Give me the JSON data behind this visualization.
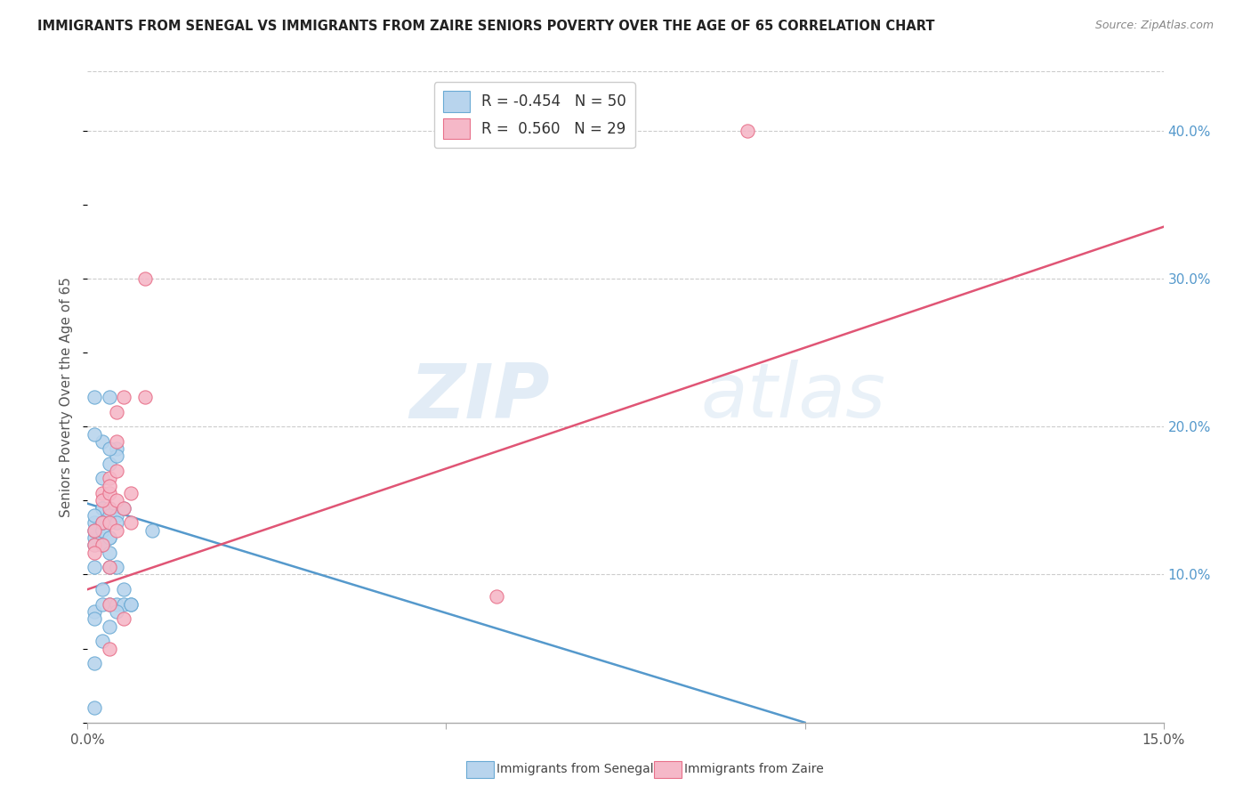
{
  "title": "IMMIGRANTS FROM SENEGAL VS IMMIGRANTS FROM ZAIRE SENIORS POVERTY OVER THE AGE OF 65 CORRELATION CHART",
  "source": "Source: ZipAtlas.com",
  "ylabel": "Seniors Poverty Over the Age of 65",
  "ylabel_ticks": [
    "10.0%",
    "20.0%",
    "30.0%",
    "40.0%"
  ],
  "ylabel_tick_vals": [
    0.1,
    0.2,
    0.3,
    0.4
  ],
  "xlim": [
    0.0,
    0.15
  ],
  "ylim": [
    0.0,
    0.44
  ],
  "watermark_zip": "ZIP",
  "watermark_atlas": "atlas",
  "legend_blue_r": "R = -0.454",
  "legend_blue_n": "N = 50",
  "legend_pink_r": "R =  0.560",
  "legend_pink_n": "N = 29",
  "legend_label_blue": "Immigrants from Senegal",
  "legend_label_pink": "Immigrants from Zaire",
  "blue_fill": "#b8d4ed",
  "pink_fill": "#f5b8c8",
  "blue_edge": "#6aaad4",
  "pink_edge": "#e8708a",
  "blue_line": "#5599cc",
  "pink_line": "#e05575",
  "senegal_x": [
    0.001,
    0.002,
    0.003,
    0.001,
    0.003,
    0.002,
    0.002,
    0.003,
    0.004,
    0.004,
    0.001,
    0.001,
    0.002,
    0.002,
    0.003,
    0.001,
    0.002,
    0.002,
    0.002,
    0.003,
    0.001,
    0.002,
    0.001,
    0.002,
    0.003,
    0.004,
    0.003,
    0.002,
    0.001,
    0.001,
    0.004,
    0.003,
    0.002,
    0.003,
    0.004,
    0.005,
    0.004,
    0.001,
    0.002,
    0.005,
    0.003,
    0.006,
    0.004,
    0.005,
    0.001,
    0.009,
    0.001,
    0.006,
    0.002,
    0.003
  ],
  "senegal_y": [
    0.135,
    0.19,
    0.22,
    0.22,
    0.175,
    0.165,
    0.12,
    0.145,
    0.185,
    0.18,
    0.125,
    0.13,
    0.145,
    0.145,
    0.185,
    0.105,
    0.13,
    0.13,
    0.145,
    0.125,
    0.14,
    0.13,
    0.12,
    0.12,
    0.14,
    0.14,
    0.105,
    0.09,
    0.075,
    0.07,
    0.105,
    0.08,
    0.08,
    0.065,
    0.08,
    0.08,
    0.075,
    0.04,
    0.055,
    0.09,
    0.125,
    0.08,
    0.135,
    0.145,
    0.195,
    0.13,
    0.01,
    0.08,
    0.135,
    0.115
  ],
  "zaire_x": [
    0.001,
    0.002,
    0.001,
    0.002,
    0.001,
    0.002,
    0.003,
    0.003,
    0.002,
    0.003,
    0.003,
    0.003,
    0.004,
    0.004,
    0.004,
    0.005,
    0.004,
    0.003,
    0.003,
    0.003,
    0.005,
    0.004,
    0.005,
    0.006,
    0.006,
    0.008,
    0.008,
    0.057,
    0.092
  ],
  "zaire_y": [
    0.12,
    0.12,
    0.115,
    0.135,
    0.13,
    0.155,
    0.145,
    0.165,
    0.15,
    0.155,
    0.16,
    0.135,
    0.17,
    0.19,
    0.21,
    0.22,
    0.15,
    0.105,
    0.08,
    0.05,
    0.145,
    0.13,
    0.07,
    0.135,
    0.155,
    0.3,
    0.22,
    0.085,
    0.4
  ],
  "blue_trend_x": [
    0.0,
    0.1
  ],
  "blue_trend_y": [
    0.148,
    0.0
  ],
  "pink_trend_x": [
    0.0,
    0.15
  ],
  "pink_trend_y": [
    0.09,
    0.335
  ],
  "grid_color": "#cccccc",
  "bg_color": "#ffffff",
  "title_color": "#222222",
  "source_color": "#888888",
  "axis_label_color": "#555555",
  "ytick_color": "#5599cc",
  "xtick_color": "#555555"
}
